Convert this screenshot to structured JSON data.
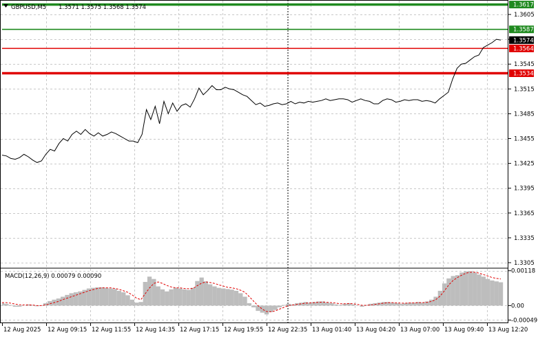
{
  "header": {
    "symbol_label": "GBPUSD,M5",
    "ohlc_label": "1.3571 1.3575 1.3568 1.3574"
  },
  "colors": {
    "background": "#ffffff",
    "grid": "#c8c8c8",
    "price_line": "#000000",
    "support_red": "#e00000",
    "resistance_green": "#1f8a1f",
    "macd_hist": "#bdbdbd",
    "macd_signal": "#e00000",
    "current_price_tag": "#000000"
  },
  "chart_data": [
    {
      "type": "line",
      "title": "GBPUSD,M5",
      "ylim": [
        1.33,
        1.362
      ],
      "y_ticks": [
        "1.3605",
        "1.3575",
        "1.3545",
        "1.3515",
        "1.3485",
        "1.3455",
        "1.3425",
        "1.3395",
        "1.3365",
        "1.3335",
        "1.3305"
      ],
      "x_ticks": [
        "12 Aug 2025",
        "12 Aug 09:15",
        "12 Aug 11:55",
        "12 Aug 14:35",
        "12 Aug 17:15",
        "12 Aug 19:55",
        "12 Aug 22:35",
        "13 Aug 01:40",
        "13 Aug 04:20",
        "13 Aug 07:00",
        "13 Aug 09:40",
        "13 Aug 12:20"
      ],
      "series": [
        {
          "values": [
            1.3435,
            1.3434,
            1.3431,
            1.343,
            1.3432,
            1.3436,
            1.3433,
            1.3429,
            1.3426,
            1.3428,
            1.3436,
            1.3442,
            1.344,
            1.3449,
            1.3455,
            1.3452,
            1.346,
            1.3464,
            1.346,
            1.3466,
            1.3461,
            1.3458,
            1.3462,
            1.3458,
            1.346,
            1.3463,
            1.3461,
            1.3458,
            1.3455,
            1.3452,
            1.3452,
            1.345,
            1.346,
            1.349,
            1.3478,
            1.3494,
            1.3473,
            1.35,
            1.3485,
            1.3498,
            1.3488,
            1.3495,
            1.3497,
            1.3493,
            1.3503,
            1.3516,
            1.3508,
            1.3513,
            1.3519,
            1.3514,
            1.3514,
            1.3517,
            1.3515,
            1.3514,
            1.3511,
            1.3508,
            1.3506,
            1.3501,
            1.3496,
            1.3498,
            1.3494,
            1.3495,
            1.3497,
            1.3498,
            1.3496,
            1.3497,
            1.35,
            1.3497,
            1.3499,
            1.3498,
            1.35,
            1.3499,
            1.35,
            1.3501,
            1.3503,
            1.3501,
            1.3502,
            1.3503,
            1.3503,
            1.3502,
            1.3499,
            1.3501,
            1.3503,
            1.3501,
            1.35,
            1.3497,
            1.3497,
            1.3501,
            1.3503,
            1.3502,
            1.3499,
            1.35,
            1.3502,
            1.3501,
            1.3502,
            1.3502,
            1.35,
            1.3501,
            1.35,
            1.3498,
            1.3503,
            1.3507,
            1.3511,
            1.3527,
            1.354,
            1.3545,
            1.3546,
            1.355,
            1.3554,
            1.3556,
            1.3565,
            1.3568,
            1.3571,
            1.3575,
            1.3574
          ]
        }
      ],
      "horizontal_levels": [
        {
          "value": 1.3617,
          "label": "1.3617",
          "color": "#1f8a1f"
        },
        {
          "value": 1.3587,
          "label": "1.3587",
          "color": "#1f8a1f"
        },
        {
          "value": 1.3564,
          "label": "1.3564",
          "color": "#e00000"
        },
        {
          "value": 1.3534,
          "label": "1.3534",
          "color": "#e00000"
        }
      ],
      "current_price": {
        "value": 1.3574,
        "label": "1.3574"
      },
      "grid": true
    },
    {
      "type": "bar",
      "title": "MACD(12,26,9) 0.00079 0.00090",
      "ylim": [
        -0.00055,
        0.00122
      ],
      "y_ticks": [
        "0.00118",
        "0.00",
        "-0.00049"
      ],
      "series": [
        {
          "name": "MACD",
          "values": [
            8e-05,
            6e-05,
            2e-05,
            -4e-05,
            -4e-05,
            0.0,
            4e-05,
            2e-05,
            -2e-05,
            0.0,
            8e-05,
            0.00015,
            0.0002,
            0.00024,
            0.0003,
            0.00036,
            0.00042,
            0.00045,
            0.00048,
            0.00053,
            0.00058,
            0.0006,
            0.00062,
            0.00062,
            0.0006,
            0.00058,
            0.00056,
            0.0005,
            0.00045,
            0.00035,
            0.0002,
            0.0001,
            0.00012,
            0.0008,
            0.00098,
            0.0009,
            0.00065,
            0.00055,
            0.00048,
            0.00055,
            0.0006,
            0.00058,
            0.00055,
            0.00053,
            0.0006,
            0.00083,
            0.00095,
            0.00082,
            0.00072,
            0.00065,
            0.0006,
            0.00058,
            0.00056,
            0.00054,
            0.0005,
            0.00042,
            0.0003,
            8e-05,
            -6e-05,
            -0.00018,
            -0.00024,
            -0.0003,
            -0.00022,
            -0.00015,
            -6e-05,
            2e-05,
            6e-05,
            4e-05,
            8e-05,
            0.0001,
            0.00012,
            0.0001,
            0.00012,
            0.00014,
            0.00014,
            0.0001,
            8e-05,
            4e-05,
            2e-05,
            6e-05,
            8e-05,
            4e-05,
            0.0,
            -4e-05,
            2e-05,
            6e-05,
            8e-05,
            0.0001,
            0.00012,
            0.00012,
            0.0001,
            8e-05,
            6e-05,
            8e-05,
            0.0001,
            0.0001,
            0.00012,
            0.0001,
            0.00014,
            0.0002,
            0.0003,
            0.0005,
            0.00075,
            0.00092,
            0.001,
            0.00103,
            0.00112,
            0.00116,
            0.00116,
            0.00112,
            0.00105,
            0.00098,
            0.0009,
            0.00085,
            0.00082,
            0.00079
          ]
        },
        {
          "name": "Signal",
          "values": [
            0.0001,
            0.0001,
            8e-05,
            5e-05,
            3e-05,
            2e-05,
            2e-05,
            2e-05,
            0.0,
            0.0,
            2e-05,
            6e-05,
            0.0001,
            0.00014,
            0.0002,
            0.00025,
            0.0003,
            0.00035,
            0.0004,
            0.00045,
            0.0005,
            0.00054,
            0.00058,
            0.0006,
            0.0006,
            0.0006,
            0.00058,
            0.00055,
            0.0005,
            0.00045,
            0.00036,
            0.00025,
            0.0002,
            0.0004,
            0.0006,
            0.00075,
            0.0008,
            0.00075,
            0.00068,
            0.00063,
            0.0006,
            0.0006,
            0.00058,
            0.00057,
            0.00058,
            0.00067,
            0.00076,
            0.0008,
            0.00078,
            0.00075,
            0.0007,
            0.00066,
            0.00062,
            0.0006,
            0.00057,
            0.00052,
            0.00045,
            0.0003,
            0.00015,
            0.0,
            -0.00012,
            -0.0002,
            -0.00021,
            -0.00018,
            -0.00012,
            -6e-05,
            0.0,
            2e-05,
            4e-05,
            6e-05,
            8e-05,
            9e-05,
            0.0001,
            0.00011,
            0.00012,
            0.00011,
            0.0001,
            8e-05,
            6e-05,
            6e-05,
            7e-05,
            6e-05,
            4e-05,
            1e-05,
            1e-05,
            2e-05,
            4e-05,
            6e-05,
            8e-05,
            0.0001,
            0.0001,
            9e-05,
            8e-05,
            8e-05,
            9e-05,
            9e-05,
            0.0001,
            0.0001,
            0.00011,
            0.00014,
            0.0002,
            0.00032,
            0.0005,
            0.0007,
            0.00085,
            0.00095,
            0.00103,
            0.0011,
            0.00113,
            0.00113,
            0.0011,
            0.00105,
            0.001,
            0.00095,
            0.00092,
            0.0009
          ]
        }
      ],
      "grid": true
    }
  ]
}
